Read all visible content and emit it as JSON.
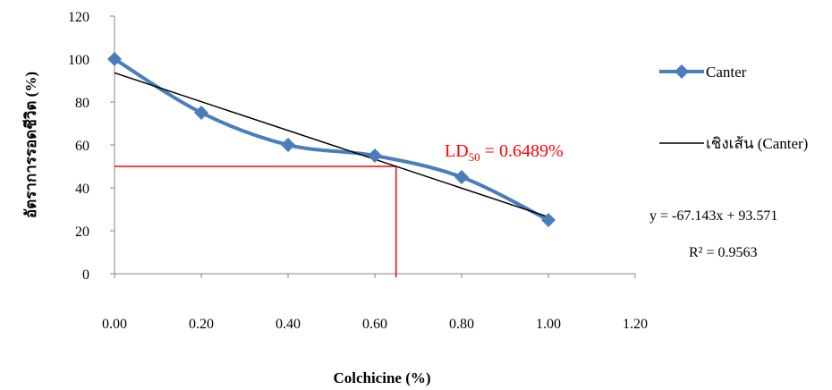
{
  "chart_data": {
    "type": "line",
    "xlabel": "Colchicine (%)",
    "ylabel": "อัตราการรอดชีวิต (%)",
    "xlim": [
      0,
      1.2
    ],
    "ylim": [
      0,
      120
    ],
    "xticks": [
      "0.00",
      "0.20",
      "0.40",
      "0.60",
      "0.80",
      "1.00",
      "1.20"
    ],
    "yticks": [
      "0",
      "20",
      "40",
      "60",
      "80",
      "100",
      "120"
    ],
    "grid": false,
    "legend_position": "right",
    "series": [
      {
        "name": "Canter",
        "x": [
          0,
          0.2,
          0.4,
          0.6,
          0.8,
          1.0
        ],
        "y": [
          100,
          75,
          60,
          55,
          45,
          25
        ],
        "color": "#4a7ebb",
        "marker": "diamond",
        "smooth": true
      }
    ],
    "trendline": {
      "name": "เชิงเส้น (Canter)",
      "slope": -67.143,
      "intercept": 93.571,
      "color": "#000000"
    },
    "annotations": {
      "equation": "y = -67.143x + 93.571",
      "r_squared": "R² = 0.9563",
      "ld50_prefix": "LD",
      "ld50_sub": "50",
      "ld50_value": " = 0.6489%",
      "ld50_x": 0.6489,
      "ld50_y": 50,
      "ld50_color": "#ff0000"
    }
  }
}
